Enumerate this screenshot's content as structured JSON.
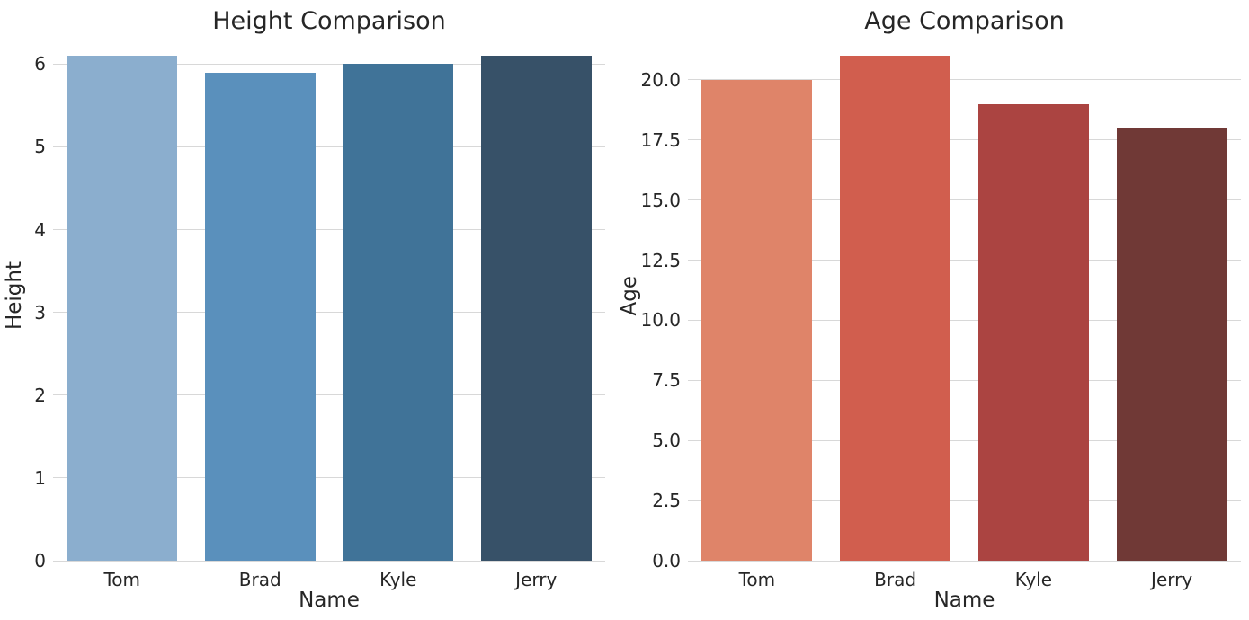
{
  "figure": {
    "background_color": "#ffffff",
    "text_color": "#262626",
    "grid_color": "#d8d8d8"
  },
  "chart_data": [
    {
      "type": "bar",
      "title": "Height Comparison",
      "xlabel": "Name",
      "ylabel": "Height",
      "categories": [
        "Tom",
        "Brad",
        "Kyle",
        "Jerry"
      ],
      "values": [
        6.1,
        5.9,
        6.0,
        6.1
      ],
      "bar_colors": [
        "#8baece",
        "#5a90bc",
        "#407398",
        "#375168"
      ],
      "ylim": [
        0,
        6.405
      ],
      "ytick_values": [
        0,
        1,
        2,
        3,
        4,
        5,
        6
      ],
      "ytick_labels": [
        "0",
        "1",
        "2",
        "3",
        "4",
        "5",
        "6"
      ],
      "grid": true,
      "legend_position": "none"
    },
    {
      "type": "bar",
      "title": "Age Comparison",
      "xlabel": "Name",
      "ylabel": "Age",
      "categories": [
        "Tom",
        "Brad",
        "Kyle",
        "Jerry"
      ],
      "values": [
        20,
        21,
        19,
        18
      ],
      "bar_colors": [
        "#df8469",
        "#d15e4e",
        "#ab4441",
        "#703936"
      ],
      "ylim": [
        0,
        22.05
      ],
      "ytick_values": [
        0,
        2.5,
        5,
        7.5,
        10,
        12.5,
        15,
        17.5,
        20
      ],
      "ytick_labels": [
        "0.0",
        "2.5",
        "5.0",
        "7.5",
        "10.0",
        "12.5",
        "15.0",
        "17.5",
        "20.0"
      ],
      "grid": true,
      "legend_position": "none"
    }
  ]
}
